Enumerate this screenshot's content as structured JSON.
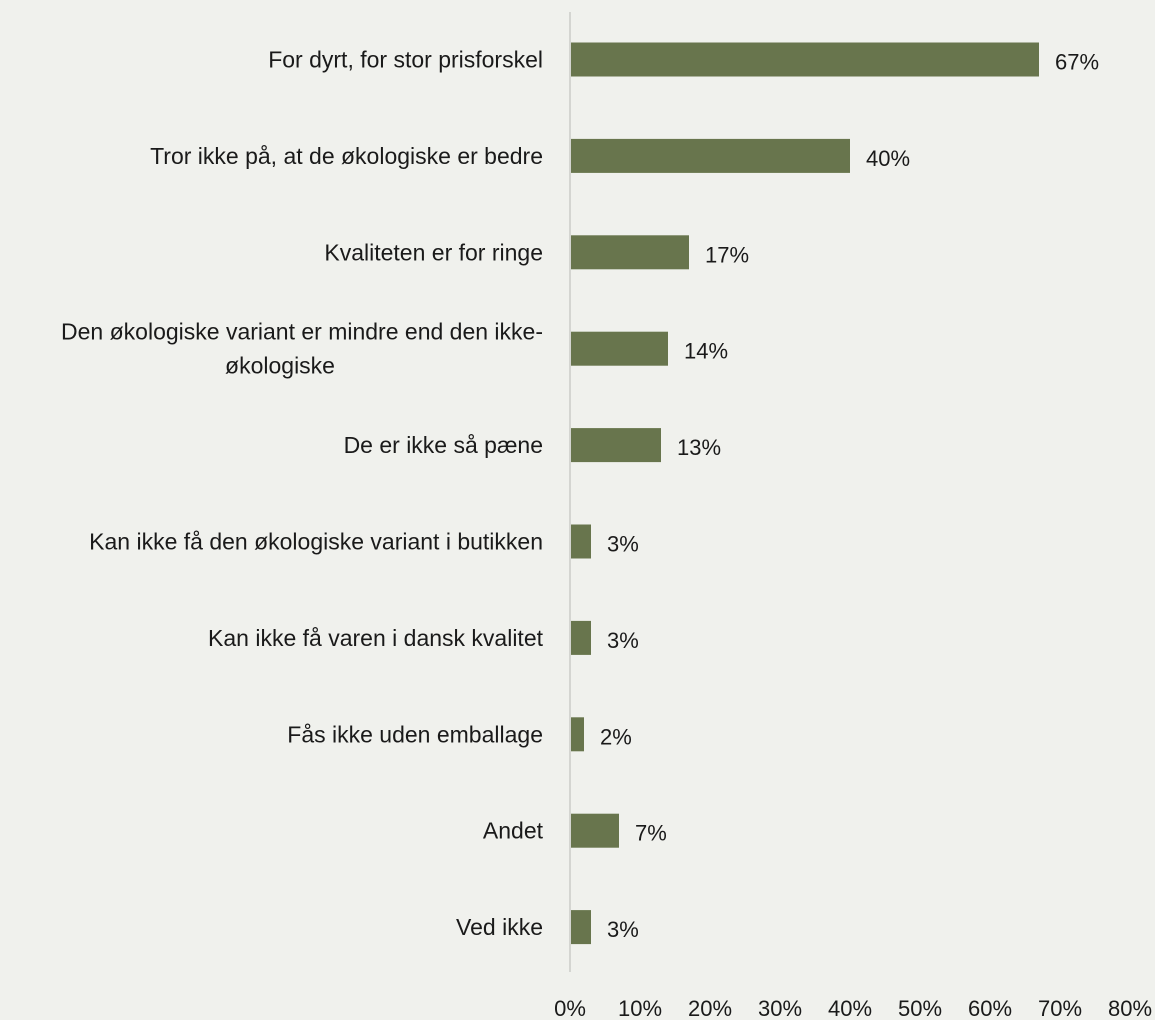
{
  "chart_data": {
    "type": "bar",
    "orientation": "horizontal",
    "categories": [
      [
        "For dyrt, for stor prisforskel"
      ],
      [
        "Tror ikke på, at de økologiske er bedre"
      ],
      [
        "Kvaliteten er for ringe"
      ],
      [
        "Den økologiske variant er mindre end den ikke-",
        "økologiske"
      ],
      [
        "De er ikke så pæne"
      ],
      [
        "Kan ikke få den økologiske variant i butikken"
      ],
      [
        "Kan ikke få varen i dansk kvalitet"
      ],
      [
        "Fås ikke uden emballage"
      ],
      [
        "Andet"
      ],
      [
        "Ved ikke"
      ]
    ],
    "values": [
      67,
      40,
      17,
      14,
      13,
      3,
      3,
      2,
      7,
      3
    ],
    "value_labels": [
      "67%",
      "40%",
      "17%",
      "14%",
      "13%",
      "3%",
      "3%",
      "2%",
      "7%",
      "3%"
    ],
    "xlim": [
      0,
      80
    ],
    "xticks": [
      "0%",
      "10%",
      "20%",
      "30%",
      "40%",
      "50%",
      "60%",
      "70%",
      "80%"
    ],
    "grid": false,
    "colors": {
      "bar": "#68754d",
      "axis": "#d4d5d1",
      "background": "#f0f1ed"
    }
  }
}
